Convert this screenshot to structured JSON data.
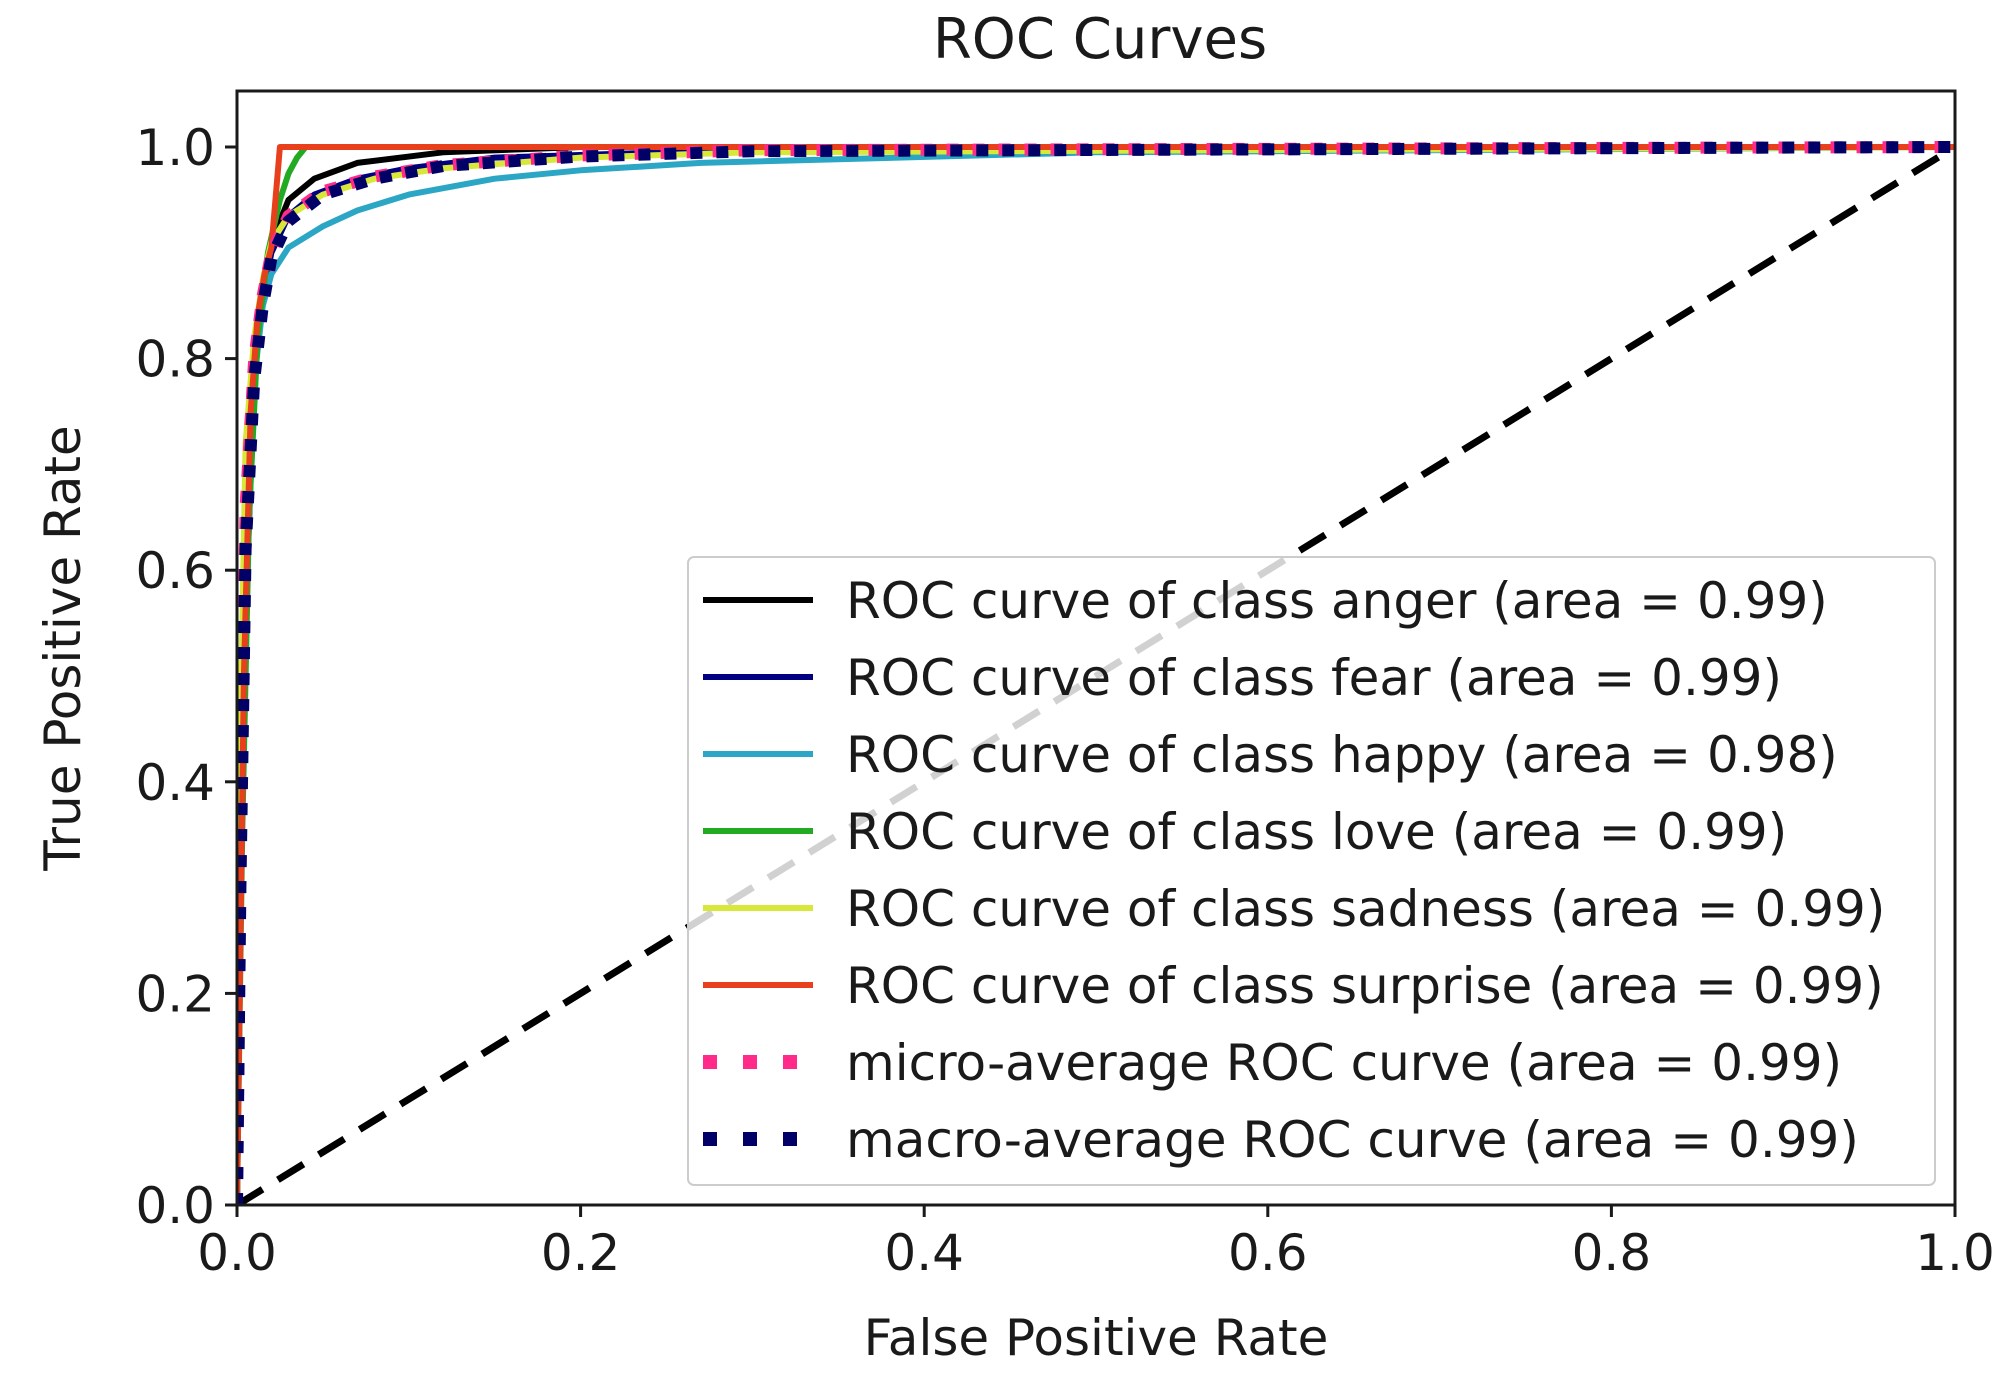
{
  "chart_data": {
    "type": "line",
    "title": "ROC Curves",
    "xlabel": "False Positive Rate",
    "ylabel": "True Positive Rate",
    "xlim": [
      0.0,
      1.0
    ],
    "ylim": [
      0.0,
      1.05
    ],
    "xticks": [
      0.0,
      0.2,
      0.4,
      0.6,
      0.8,
      1.0
    ],
    "yticks": [
      0.0,
      0.2,
      0.4,
      0.6,
      0.8,
      1.0
    ],
    "xtick_labels": [
      "0.0",
      "0.2",
      "0.4",
      "0.6",
      "0.8",
      "1.0"
    ],
    "ytick_labels": [
      "0.0",
      "0.2",
      "0.4",
      "0.6",
      "0.8",
      "1.0"
    ],
    "grid": false,
    "legend_position": "lower-right",
    "chance_line": {
      "x": [
        0.0,
        1.0
      ],
      "y": [
        0.0,
        1.0
      ],
      "color": "#000000",
      "style": "dashed"
    },
    "series": [
      {
        "name": "ROC curve of class anger (area = 0.99)",
        "color": "#000000",
        "style": "solid",
        "x": [
          0.0,
          0.002,
          0.006,
          0.01,
          0.015,
          0.02,
          0.03,
          0.045,
          0.07,
          0.12,
          0.2,
          1.0
        ],
        "y": [
          0.0,
          0.3,
          0.62,
          0.8,
          0.87,
          0.91,
          0.95,
          0.97,
          0.985,
          0.995,
          1.0,
          1.0
        ]
      },
      {
        "name": "ROC curve of class fear (area = 0.99)",
        "color": "#000080",
        "style": "solid",
        "x": [
          0.0,
          0.002,
          0.006,
          0.01,
          0.015,
          0.02,
          0.03,
          0.045,
          0.07,
          0.1,
          0.15,
          0.25,
          0.5,
          1.0
        ],
        "y": [
          0.0,
          0.3,
          0.6,
          0.78,
          0.86,
          0.9,
          0.935,
          0.955,
          0.97,
          0.98,
          0.99,
          0.995,
          1.0,
          1.0
        ]
      },
      {
        "name": "ROC curve of class happy (area = 0.98)",
        "color": "#2ba6c4",
        "style": "solid",
        "x": [
          0.0,
          0.002,
          0.005,
          0.01,
          0.015,
          0.02,
          0.03,
          0.05,
          0.07,
          0.1,
          0.15,
          0.2,
          0.27,
          0.5,
          1.0
        ],
        "y": [
          0.0,
          0.3,
          0.6,
          0.78,
          0.85,
          0.88,
          0.905,
          0.925,
          0.94,
          0.955,
          0.97,
          0.978,
          0.985,
          0.995,
          1.0
        ]
      },
      {
        "name": "ROC curve of class love (area = 0.99)",
        "color": "#22aa22",
        "style": "solid",
        "x": [
          0.0,
          0.003,
          0.007,
          0.012,
          0.018,
          0.025,
          0.03,
          0.035,
          0.04,
          1.0
        ],
        "y": [
          0.0,
          0.35,
          0.65,
          0.82,
          0.9,
          0.95,
          0.975,
          0.99,
          1.0,
          1.0
        ]
      },
      {
        "name": "ROC curve of class sadness (area = 0.99)",
        "color": "#d8e83a",
        "style": "solid",
        "x": [
          0.0,
          0.002,
          0.005,
          0.01,
          0.015,
          0.02,
          0.03,
          0.05,
          0.08,
          0.12,
          0.2,
          0.3,
          1.0
        ],
        "y": [
          0.0,
          0.45,
          0.72,
          0.82,
          0.875,
          0.91,
          0.935,
          0.955,
          0.97,
          0.98,
          0.99,
          0.995,
          1.0
        ]
      },
      {
        "name": "ROC curve of class surprise (area = 0.99)",
        "color": "#e8401c",
        "style": "solid",
        "x": [
          0.0,
          0.002,
          0.004,
          0.008,
          0.012,
          0.016,
          0.02,
          0.025,
          0.03,
          1.0
        ],
        "y": [
          0.0,
          0.25,
          0.5,
          0.75,
          0.84,
          0.88,
          0.905,
          1.0,
          1.0,
          1.0
        ]
      },
      {
        "name": "micro-average ROC curve (area = 0.99)",
        "color": "#ff2a8a",
        "style": "dotted",
        "x": [
          0.0,
          0.002,
          0.005,
          0.01,
          0.015,
          0.02,
          0.03,
          0.05,
          0.08,
          0.12,
          0.2,
          0.3,
          1.0
        ],
        "y": [
          0.0,
          0.35,
          0.66,
          0.8,
          0.86,
          0.9,
          0.935,
          0.958,
          0.972,
          0.983,
          0.992,
          0.997,
          1.0
        ]
      },
      {
        "name": "macro-average ROC curve (area = 0.99)",
        "color": "#000066",
        "style": "dotted",
        "x": [
          0.0,
          0.002,
          0.005,
          0.01,
          0.015,
          0.02,
          0.03,
          0.05,
          0.08,
          0.12,
          0.2,
          0.3,
          1.0
        ],
        "y": [
          0.0,
          0.3,
          0.62,
          0.78,
          0.85,
          0.895,
          0.93,
          0.955,
          0.97,
          0.982,
          0.991,
          0.996,
          1.0
        ]
      }
    ]
  }
}
